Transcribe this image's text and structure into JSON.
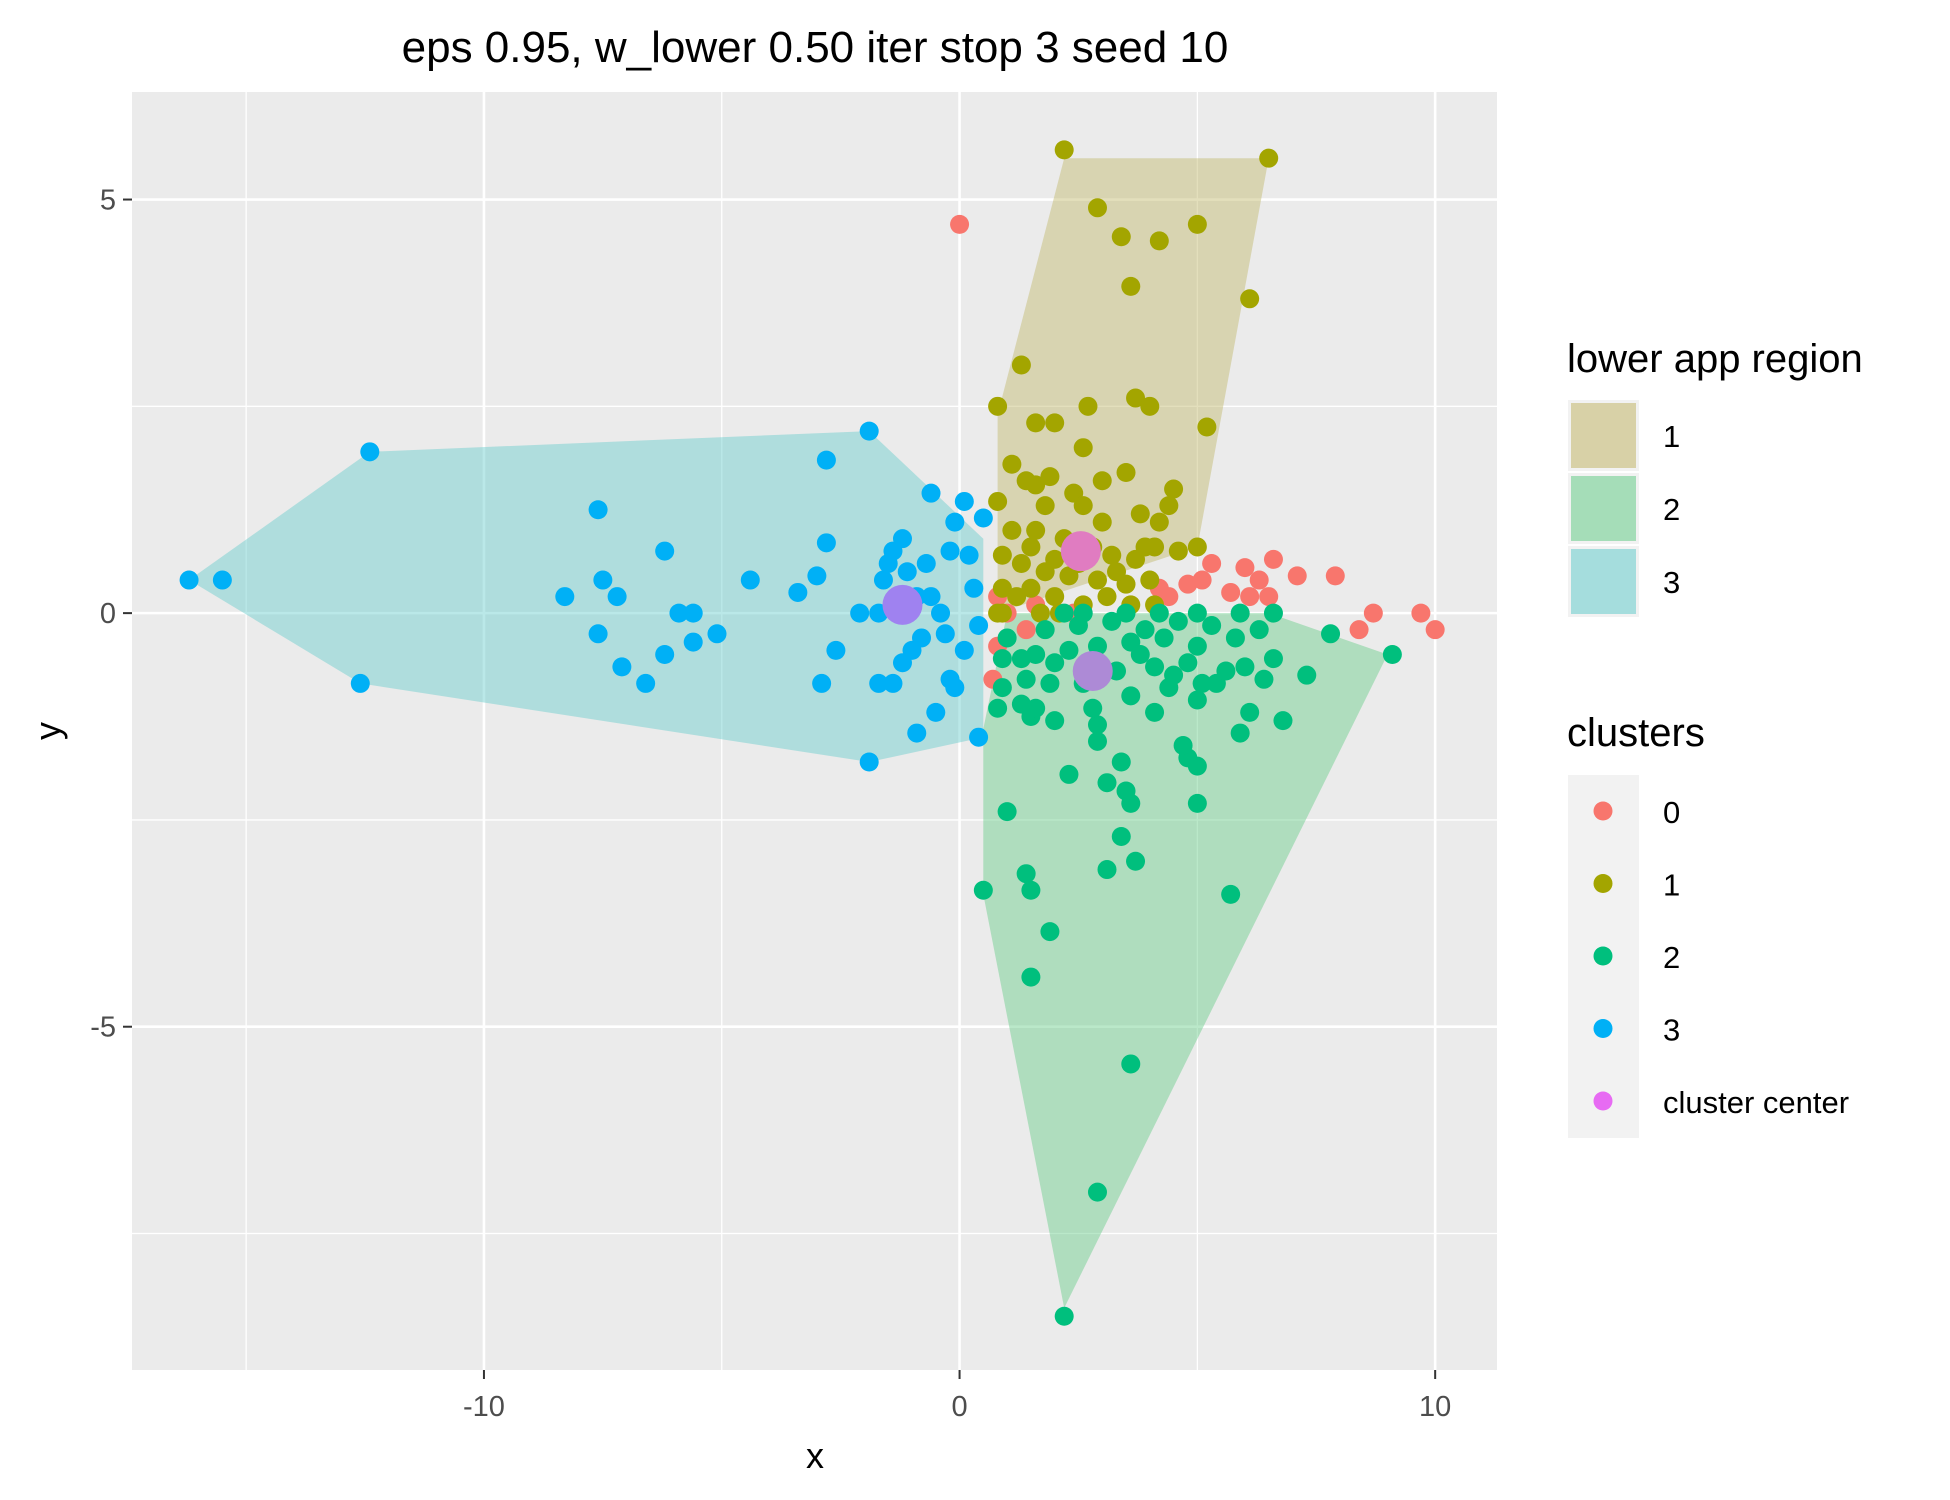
{
  "chart_data": {
    "type": "scatter",
    "title": "eps 0.95, w_lower 0.50 iter stop 3 seed 10",
    "xlabel": "x",
    "ylabel": "y",
    "xlim": [
      -17.4,
      11.3
    ],
    "ylim": [
      -9.15,
      6.3
    ],
    "x_ticks": [
      -10,
      0,
      10
    ],
    "y_ticks": [
      -5,
      0,
      5
    ],
    "x_tick_labels": [
      "-10",
      "0",
      "10"
    ],
    "y_tick_labels": [
      "-5",
      "0",
      "5"
    ],
    "x_minor": [
      -15,
      -5,
      5
    ],
    "y_minor": [
      -7.5,
      -2.5,
      2.5
    ],
    "grid": true,
    "panel_color": "#ebebeb",
    "grid_color": "#ffffff",
    "legend_position": "right",
    "legend_regions": {
      "title": "lower app region",
      "entries": [
        {
          "label": "1",
          "color": "#c2b76a"
        },
        {
          "label": "2",
          "color": "#66cc88"
        },
        {
          "label": "3",
          "color": "#66cccc"
        }
      ]
    },
    "legend_clusters": {
      "title": "clusters",
      "entries": [
        {
          "label": "0",
          "color": "#F8766D"
        },
        {
          "label": "1",
          "color": "#A3A500"
        },
        {
          "label": "2",
          "color": "#00BF7D"
        },
        {
          "label": "3",
          "color": "#00B0F6"
        },
        {
          "label": "cluster center",
          "color": "#E76BF3"
        }
      ]
    },
    "regions": [
      {
        "name": "1",
        "color": "#c2b76a",
        "opacity": 0.45,
        "polygon": [
          [
            0.8,
            2.4
          ],
          [
            2.2,
            5.5
          ],
          [
            6.5,
            5.5
          ],
          [
            5.0,
            0.8
          ],
          [
            0.8,
            0.0
          ]
        ]
      },
      {
        "name": "2",
        "color": "#66cc88",
        "opacity": 0.45,
        "polygon": [
          [
            0.5,
            -1.4
          ],
          [
            0.5,
            -3.4
          ],
          [
            2.2,
            -8.4
          ],
          [
            9.0,
            -0.5
          ],
          [
            6.5,
            0.0
          ],
          [
            1.0,
            0.0
          ]
        ]
      },
      {
        "name": "3",
        "color": "#66cccc",
        "opacity": 0.45,
        "polygon": [
          [
            -16.2,
            0.4
          ],
          [
            -12.4,
            1.95
          ],
          [
            -1.9,
            2.2
          ],
          [
            0.5,
            0.9
          ],
          [
            0.5,
            -1.5
          ],
          [
            -1.9,
            -1.8
          ],
          [
            -12.6,
            -0.85
          ]
        ]
      }
    ],
    "series": [
      {
        "name": "0",
        "color": "#F8766D",
        "points": [
          [
            0.0,
            4.7
          ],
          [
            0.8,
            0.2
          ],
          [
            0.8,
            -0.4
          ],
          [
            1.4,
            -0.2
          ],
          [
            2.4,
            0.0
          ],
          [
            4.2,
            0.3
          ],
          [
            4.4,
            0.2
          ],
          [
            4.8,
            0.35
          ],
          [
            5.1,
            0.4
          ],
          [
            5.3,
            0.6
          ],
          [
            5.7,
            0.25
          ],
          [
            6.1,
            0.2
          ],
          [
            6.3,
            0.4
          ],
          [
            6.6,
            0.65
          ],
          [
            7.1,
            0.45
          ],
          [
            7.9,
            0.45
          ],
          [
            8.4,
            -0.2
          ],
          [
            8.7,
            0.0
          ],
          [
            9.7,
            0.0
          ],
          [
            10.0,
            -0.2
          ],
          [
            0.7,
            -0.8
          ],
          [
            1.0,
            0.0
          ],
          [
            1.6,
            0.1
          ],
          [
            6.0,
            0.55
          ],
          [
            6.5,
            0.2
          ]
        ]
      },
      {
        "name": "1",
        "color": "#A3A500",
        "points": [
          [
            2.2,
            5.6
          ],
          [
            6.5,
            5.5
          ],
          [
            2.9,
            4.9
          ],
          [
            3.4,
            4.55
          ],
          [
            4.2,
            4.5
          ],
          [
            5.0,
            4.7
          ],
          [
            6.1,
            3.8
          ],
          [
            3.6,
            3.95
          ],
          [
            1.3,
            3.0
          ],
          [
            0.8,
            2.5
          ],
          [
            3.7,
            2.6
          ],
          [
            4.0,
            2.5
          ],
          [
            2.7,
            2.5
          ],
          [
            5.2,
            2.25
          ],
          [
            1.6,
            2.3
          ],
          [
            2.0,
            2.3
          ],
          [
            2.6,
            2.0
          ],
          [
            1.1,
            1.8
          ],
          [
            3.5,
            1.7
          ],
          [
            1.4,
            1.6
          ],
          [
            1.6,
            1.55
          ],
          [
            1.9,
            1.65
          ],
          [
            2.4,
            1.45
          ],
          [
            4.5,
            1.5
          ],
          [
            0.8,
            1.35
          ],
          [
            1.8,
            1.3
          ],
          [
            2.6,
            1.3
          ],
          [
            3.0,
            1.1
          ],
          [
            3.8,
            1.2
          ],
          [
            4.4,
            1.3
          ],
          [
            4.2,
            1.1
          ],
          [
            1.1,
            1.0
          ],
          [
            1.6,
            1.0
          ],
          [
            2.2,
            0.9
          ],
          [
            2.8,
            0.8
          ],
          [
            3.2,
            0.7
          ],
          [
            3.7,
            0.65
          ],
          [
            4.1,
            0.8
          ],
          [
            4.6,
            0.75
          ],
          [
            5.0,
            0.8
          ],
          [
            0.9,
            0.7
          ],
          [
            1.3,
            0.6
          ],
          [
            1.8,
            0.5
          ],
          [
            2.3,
            0.45
          ],
          [
            2.9,
            0.4
          ],
          [
            3.5,
            0.35
          ],
          [
            4.0,
            0.4
          ],
          [
            0.9,
            0.3
          ],
          [
            1.2,
            0.2
          ],
          [
            1.5,
            0.3
          ],
          [
            2.0,
            0.2
          ],
          [
            2.6,
            0.1
          ],
          [
            3.1,
            0.2
          ],
          [
            3.6,
            0.1
          ],
          [
            4.1,
            0.1
          ],
          [
            0.8,
            0.0
          ],
          [
            1.7,
            0.0
          ],
          [
            2.1,
            0.0
          ],
          [
            2.5,
            0.6
          ],
          [
            3.3,
            0.5
          ],
          [
            3.9,
            0.8
          ],
          [
            1.5,
            0.8
          ],
          [
            2.0,
            0.65
          ],
          [
            3.0,
            1.6
          ],
          [
            0.9,
            0.0
          ]
        ]
      },
      {
        "name": "2",
        "color": "#00BF7D",
        "points": [
          [
            2.2,
            -8.5
          ],
          [
            2.9,
            -7.0
          ],
          [
            3.6,
            -5.45
          ],
          [
            1.5,
            -4.4
          ],
          [
            1.9,
            -3.85
          ],
          [
            0.5,
            -3.35
          ],
          [
            1.5,
            -3.35
          ],
          [
            1.4,
            -3.15
          ],
          [
            5.7,
            -3.4
          ],
          [
            3.7,
            -3.0
          ],
          [
            3.1,
            -3.1
          ],
          [
            1.0,
            -2.4
          ],
          [
            3.4,
            -2.7
          ],
          [
            3.6,
            -2.3
          ],
          [
            5.0,
            -2.3
          ],
          [
            3.5,
            -2.15
          ],
          [
            3.1,
            -2.05
          ],
          [
            2.3,
            -1.95
          ],
          [
            3.4,
            -1.8
          ],
          [
            5.0,
            -1.85
          ],
          [
            4.8,
            -1.75
          ],
          [
            4.7,
            -1.6
          ],
          [
            2.9,
            -1.55
          ],
          [
            5.9,
            -1.45
          ],
          [
            2.9,
            -1.35
          ],
          [
            6.8,
            -1.3
          ],
          [
            2.8,
            -1.15
          ],
          [
            4.1,
            -1.2
          ],
          [
            6.1,
            -1.2
          ],
          [
            1.5,
            -1.25
          ],
          [
            2.0,
            -1.3
          ],
          [
            1.6,
            -1.15
          ],
          [
            0.8,
            -1.15
          ],
          [
            1.3,
            -1.1
          ],
          [
            5.0,
            -1.05
          ],
          [
            3.6,
            -1.0
          ],
          [
            4.4,
            -0.9
          ],
          [
            5.4,
            -0.85
          ],
          [
            6.4,
            -0.8
          ],
          [
            7.3,
            -0.75
          ],
          [
            1.9,
            -0.85
          ],
          [
            2.6,
            -0.85
          ],
          [
            0.9,
            -0.9
          ],
          [
            1.4,
            -0.8
          ],
          [
            3.3,
            -0.7
          ],
          [
            4.1,
            -0.65
          ],
          [
            4.8,
            -0.6
          ],
          [
            5.6,
            -0.7
          ],
          [
            6.6,
            -0.55
          ],
          [
            7.8,
            -0.25
          ],
          [
            9.1,
            -0.5
          ],
          [
            0.9,
            -0.55
          ],
          [
            1.6,
            -0.5
          ],
          [
            2.3,
            -0.45
          ],
          [
            2.9,
            -0.4
          ],
          [
            3.6,
            -0.35
          ],
          [
            4.3,
            -0.3
          ],
          [
            5.0,
            -0.4
          ],
          [
            5.8,
            -0.3
          ],
          [
            6.3,
            -0.2
          ],
          [
            1.0,
            -0.3
          ],
          [
            1.8,
            -0.2
          ],
          [
            2.5,
            -0.15
          ],
          [
            3.2,
            -0.1
          ],
          [
            3.9,
            -0.2
          ],
          [
            4.6,
            -0.1
          ],
          [
            5.3,
            -0.15
          ],
          [
            2.2,
            0.0
          ],
          [
            2.6,
            0.0
          ],
          [
            3.5,
            0.0
          ],
          [
            4.2,
            0.0
          ],
          [
            5.0,
            0.0
          ],
          [
            5.9,
            0.0
          ],
          [
            6.6,
            0.0
          ],
          [
            1.3,
            -0.55
          ],
          [
            2.0,
            -0.6
          ],
          [
            4.5,
            -0.75
          ],
          [
            5.1,
            -0.85
          ],
          [
            3.8,
            -0.5
          ],
          [
            6.0,
            -0.65
          ]
        ]
      },
      {
        "name": "3",
        "color": "#00B0F6",
        "points": [
          [
            -16.2,
            0.4
          ],
          [
            -15.5,
            0.4
          ],
          [
            -12.4,
            1.95
          ],
          [
            -12.6,
            -0.85
          ],
          [
            -7.6,
            1.25
          ],
          [
            -8.3,
            0.2
          ],
          [
            -7.6,
            -0.25
          ],
          [
            -7.5,
            0.4
          ],
          [
            -7.2,
            0.2
          ],
          [
            -7.1,
            -0.65
          ],
          [
            -6.6,
            -0.85
          ],
          [
            -6.2,
            0.75
          ],
          [
            -6.2,
            -0.5
          ],
          [
            -5.9,
            0.0
          ],
          [
            -5.6,
            0.0
          ],
          [
            -5.6,
            -0.35
          ],
          [
            -5.1,
            -0.25
          ],
          [
            -4.4,
            0.4
          ],
          [
            -3.4,
            0.25
          ],
          [
            -3.0,
            0.45
          ],
          [
            -2.8,
            0.85
          ],
          [
            -2.8,
            1.85
          ],
          [
            -1.9,
            2.2
          ],
          [
            -2.9,
            -0.85
          ],
          [
            -2.6,
            -0.45
          ],
          [
            -2.1,
            0.0
          ],
          [
            -1.9,
            -1.8
          ],
          [
            -1.7,
            -0.85
          ],
          [
            -1.6,
            0.4
          ],
          [
            -1.5,
            0.6
          ],
          [
            -1.4,
            0.75
          ],
          [
            -1.2,
            0.9
          ],
          [
            -1.1,
            0.5
          ],
          [
            -1.0,
            -0.45
          ],
          [
            -0.9,
            -1.45
          ],
          [
            -0.7,
            0.6
          ],
          [
            -0.6,
            1.45
          ],
          [
            -0.5,
            -1.2
          ],
          [
            -0.4,
            0.0
          ],
          [
            -0.2,
            0.75
          ],
          [
            -0.1,
            1.1
          ],
          [
            0.1,
            1.35
          ],
          [
            0.2,
            0.7
          ],
          [
            0.3,
            0.3
          ],
          [
            0.4,
            -0.15
          ],
          [
            0.5,
            1.15
          ],
          [
            0.4,
            -1.5
          ],
          [
            -0.2,
            -0.8
          ],
          [
            -0.9,
            0.2
          ],
          [
            -1.4,
            -0.85
          ],
          [
            -1.2,
            -0.6
          ],
          [
            -0.3,
            -0.25
          ],
          [
            -0.6,
            0.2
          ],
          [
            0.1,
            -0.45
          ],
          [
            -0.8,
            -0.3
          ],
          [
            -1.7,
            0.0
          ],
          [
            -0.1,
            -0.9
          ]
        ]
      },
      {
        "name": "cluster center",
        "color": "#E76BF3",
        "centers": [
          {
            "x": 2.55,
            "y": 0.75,
            "color": "#e07cc1"
          },
          {
            "x": 2.8,
            "y": -0.7,
            "color": "#ad8ad6"
          },
          {
            "x": -1.2,
            "y": 0.1,
            "color": "#9f82f0"
          }
        ]
      }
    ]
  }
}
